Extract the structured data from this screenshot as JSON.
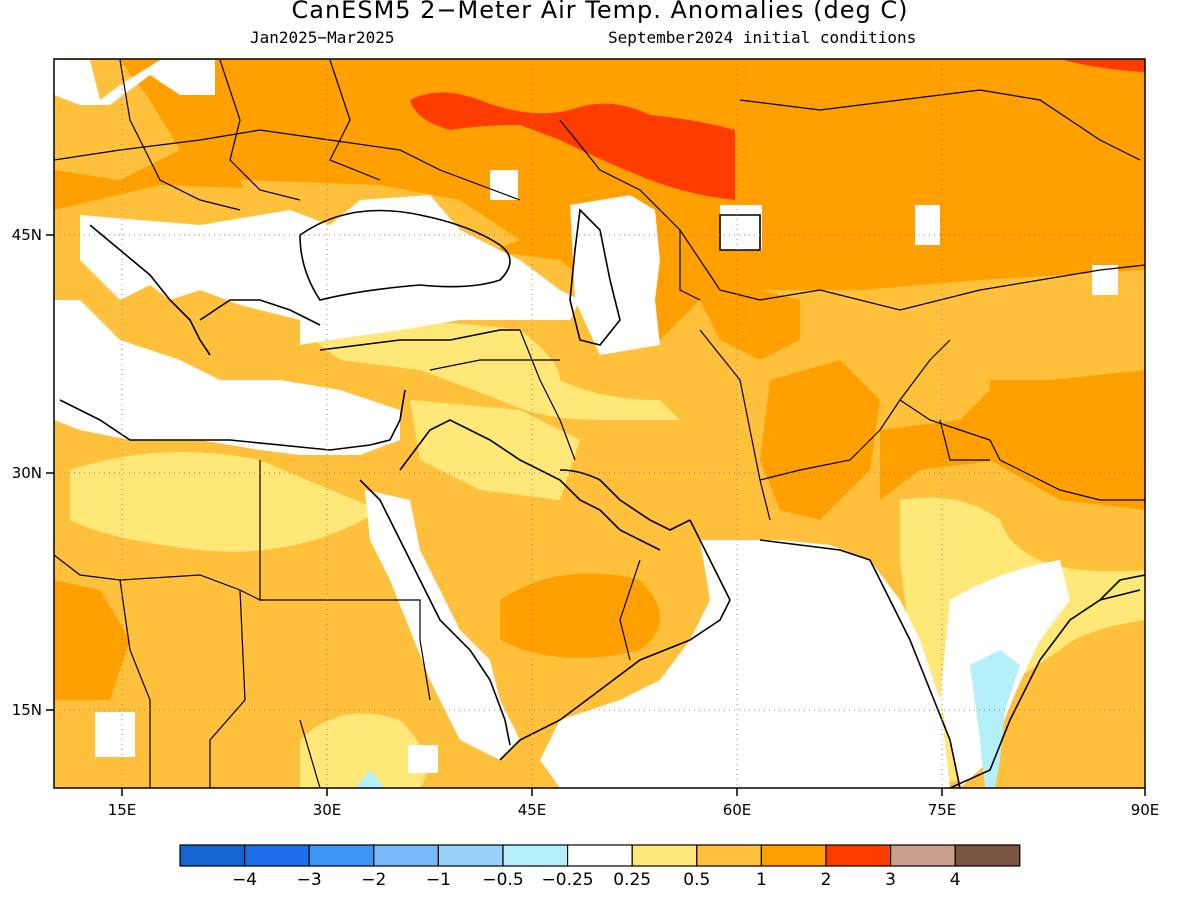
{
  "title": "CanESM5 2−Meter Air Temp. Anomalies (deg C)",
  "subtitle_left": "Jan2025−Mar2025",
  "subtitle_right": "September2024 initial conditions",
  "map": {
    "lon_range": [
      10,
      90
    ],
    "lat_range": [
      10,
      55
    ],
    "x_ticks": [
      {
        "lon": 15,
        "label": "15E"
      },
      {
        "lon": 30,
        "label": "30E"
      },
      {
        "lon": 45,
        "label": "45E"
      },
      {
        "lon": 60,
        "label": "60E"
      },
      {
        "lon": 75,
        "label": "75E"
      },
      {
        "lon": 90,
        "label": "90E"
      }
    ],
    "y_ticks": [
      {
        "lat": 15,
        "label": "15N"
      },
      {
        "lat": 30,
        "label": "30N"
      },
      {
        "lat": 45,
        "label": "45N"
      }
    ],
    "gridlines": "dotted"
  },
  "colorbar": {
    "colors": [
      "#1464d2",
      "#1e6eeb",
      "#3c96f5",
      "#78b9fa",
      "#96d2fa",
      "#b4f0fa",
      "#ffffff",
      "#ffe878",
      "#ffc03c",
      "#ffa000",
      "#ff3c00",
      "#c8a08c",
      "#7b5444"
    ],
    "labels": [
      "−4",
      "−3",
      "−2",
      "−1",
      "−0.5",
      "−0.25",
      "0.25",
      "0.5",
      "1",
      "2",
      "3",
      "4"
    ]
  }
}
